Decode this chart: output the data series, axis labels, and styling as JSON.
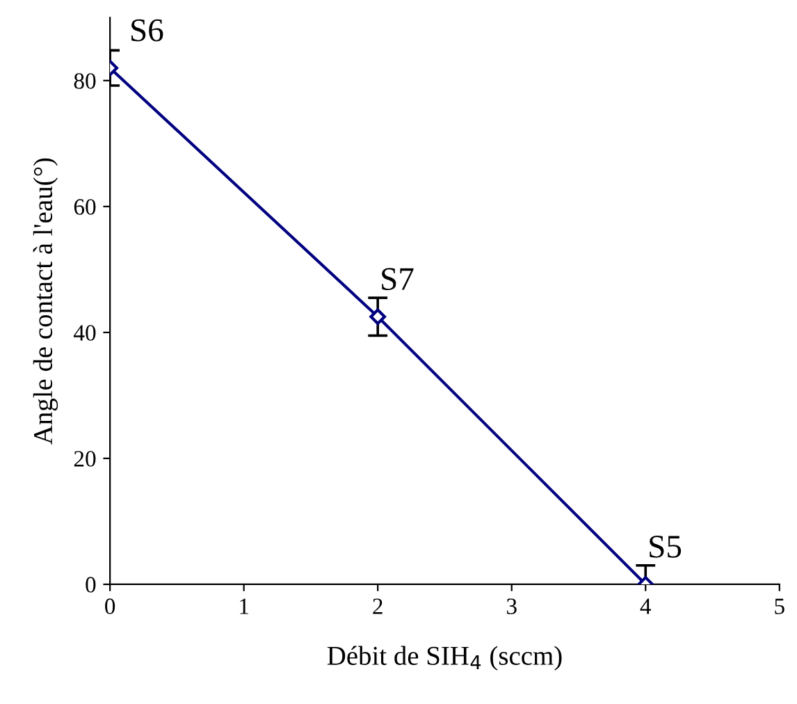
{
  "chart_data": {
    "type": "line",
    "xlabel": "Débit de SIH$_{4}$ (sccm)",
    "ylabel": "Angle de contact à l'eau(°)",
    "x": [
      0,
      2,
      4
    ],
    "series": [
      {
        "color": "#000080",
        "values": [
          82,
          42.5,
          0
        ],
        "errors": [
          2.8,
          3,
          3
        ]
      }
    ],
    "xlim": [
      0,
      5
    ],
    "ylim": [
      0,
      90
    ],
    "xticks": [
      0,
      1,
      2,
      3,
      4,
      5
    ],
    "yticks": [
      0,
      20,
      40,
      60,
      80
    ],
    "marker": "diamond",
    "line_style": "solid",
    "grid": false,
    "legend": false,
    "annotations": [
      {
        "text": "S6",
        "x": 0,
        "y": 82
      },
      {
        "text": "S7",
        "x": 2,
        "y": 42.5
      },
      {
        "text": "S5",
        "x": 4,
        "y": 0
      }
    ]
  }
}
